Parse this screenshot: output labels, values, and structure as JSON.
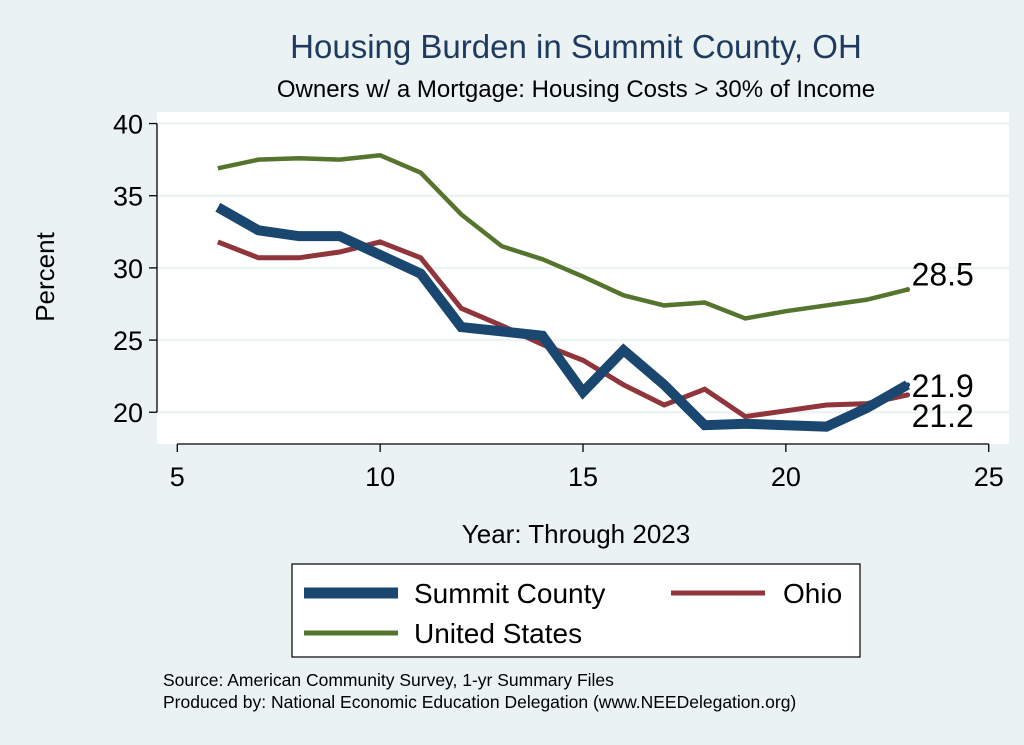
{
  "chart_data": {
    "type": "line",
    "title": "Housing Burden in Summit County, OH",
    "subtitle": "Owners w/ a Mortgage: Housing Costs > 30% of Income",
    "xlabel": "Year: Through 2023",
    "ylabel": "Percent",
    "xlim": [
      4.5,
      25.5
    ],
    "ylim": [
      17.8,
      40.8
    ],
    "x_ticks": [
      5,
      10,
      15,
      20,
      25
    ],
    "y_ticks": [
      20,
      25,
      30,
      35,
      40
    ],
    "grid": true,
    "x": [
      6,
      7,
      8,
      9,
      10,
      11,
      12,
      13,
      14,
      15,
      16,
      17,
      18,
      19,
      20,
      21,
      22,
      23
    ],
    "series": [
      {
        "name": "Summit County",
        "color": "#1a476f",
        "values": [
          34.2,
          32.6,
          32.2,
          32.2,
          30.9,
          29.6,
          25.9,
          25.6,
          25.3,
          21.4,
          24.3,
          21.9,
          19.1,
          19.2,
          19.1,
          19.0,
          20.3,
          21.9
        ],
        "end_label": "21.9"
      },
      {
        "name": "Ohio",
        "color": "#90353b",
        "values": [
          31.8,
          30.7,
          30.7,
          31.1,
          31.8,
          30.7,
          27.2,
          26.0,
          24.7,
          23.6,
          21.9,
          20.5,
          21.6,
          19.7,
          20.1,
          20.5,
          20.6,
          21.2
        ],
        "end_label": "21.2"
      },
      {
        "name": "United States",
        "color": "#55752f",
        "values": [
          36.9,
          37.5,
          37.6,
          37.5,
          37.8,
          36.6,
          33.7,
          31.5,
          30.6,
          29.4,
          28.1,
          27.4,
          27.6,
          26.5,
          27.0,
          27.4,
          27.8,
          28.5
        ],
        "end_label": "28.5"
      }
    ],
    "legend": {
      "placement": "bottom",
      "entries": [
        "Summit County",
        "Ohio",
        "United States"
      ]
    }
  },
  "footer": {
    "source": "Source: American Community Survey, 1-yr Summary Files",
    "produced": "Produced by: National Economic Education Delegation (www.NEEDelegation.org)"
  },
  "colors": {
    "background": "#eaf2f3",
    "plot_background": "#ffffff",
    "grid": "#eaf2f3",
    "title": "#1f3a5f"
  }
}
